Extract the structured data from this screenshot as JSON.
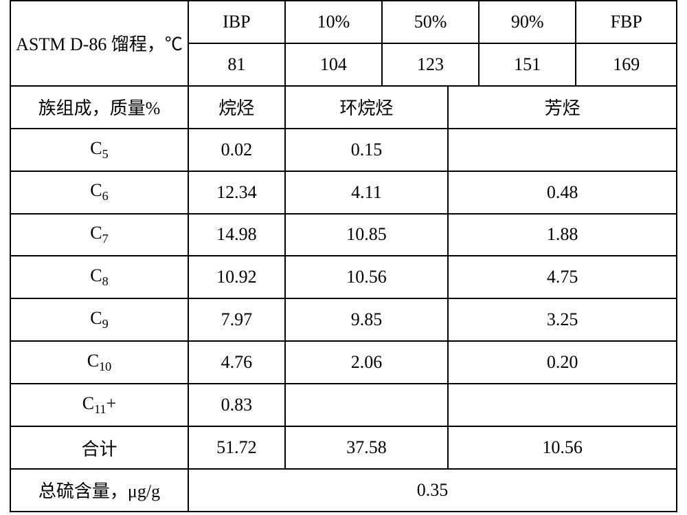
{
  "table": {
    "type": "table",
    "border_color": "#000000",
    "background_color": "#ffffff",
    "text_color": "#000000",
    "font_size_pt": 20,
    "header": {
      "row_label": "ASTM D-86 馏程，℃",
      "points": [
        "IBP",
        "10%",
        "50%",
        "90%",
        "FBP"
      ],
      "values": [
        "81",
        "104",
        "123",
        "151",
        "169"
      ]
    },
    "group_header": {
      "label": "族组成，质量%",
      "cols": [
        "烷烃",
        "环烷烃",
        "芳烃"
      ]
    },
    "rows": [
      {
        "label_html": "C<span class=\"sub\">5</span>",
        "vals": [
          "0.02",
          "0.15",
          ""
        ]
      },
      {
        "label_html": "C<span class=\"sub\">6</span>",
        "vals": [
          "12.34",
          "4.11",
          "0.48"
        ]
      },
      {
        "label_html": "C<span class=\"sub\">7</span>",
        "vals": [
          "14.98",
          "10.85",
          "1.88"
        ]
      },
      {
        "label_html": "C<span class=\"sub\">8</span>",
        "vals": [
          "10.92",
          "10.56",
          "4.75"
        ]
      },
      {
        "label_html": "C<span class=\"sub\">9</span>",
        "vals": [
          "7.97",
          "9.85",
          "3.25"
        ]
      },
      {
        "label_html": "C<span class=\"sub\">10</span>",
        "vals": [
          "4.76",
          "2.06",
          "0.20"
        ]
      },
      {
        "label_html": "C<span class=\"sub\">11</span>+",
        "vals": [
          "0.83",
          "",
          ""
        ]
      },
      {
        "label_html": "合计",
        "vals": [
          "51.72",
          "37.58",
          "10.56"
        ]
      }
    ],
    "footer": {
      "label": "总硫含量，μg/g",
      "value": "0.35"
    },
    "col_widths_pct": [
      26.7,
      4.6,
      9.9,
      14.6,
      9.9,
      4.6,
      14.6,
      15.1
    ]
  }
}
